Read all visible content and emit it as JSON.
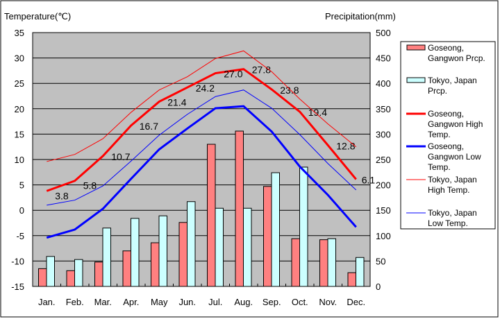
{
  "chart_data": {
    "type": "bar+line",
    "y_left_label": "Temperature(℃)",
    "y_right_label": "Precipitation(mm)",
    "ylim_left": [
      -15,
      35
    ],
    "ylim_right": [
      0,
      500
    ],
    "left_ticks": [
      "35",
      "30",
      "25",
      "20",
      "15",
      "10",
      "5",
      "0",
      "-5",
      "-10",
      "-15"
    ],
    "right_ticks": [
      "500",
      "450",
      "400",
      "350",
      "300",
      "250",
      "200",
      "150",
      "100",
      "50",
      "0"
    ],
    "categories": [
      "Jan.",
      "Feb.",
      "Mar.",
      "Apr.",
      "May",
      "Jun.",
      "Jul.",
      "Aug.",
      "Sep.",
      "Oct.",
      "Nov.",
      "Dec."
    ],
    "grid": true,
    "legend_position": "right",
    "bar_series": [
      {
        "name": "Goseong, Gangwon Prcp.",
        "color": "#ff8080",
        "values": [
          35,
          31,
          48,
          70,
          86,
          126,
          280,
          306,
          197,
          94,
          92,
          27
        ]
      },
      {
        "name": "Tokyo, Japan Prcp.",
        "color": "#ccffff",
        "values": [
          59,
          53,
          115,
          134,
          139,
          167,
          154,
          154,
          224,
          235,
          94,
          57
        ]
      }
    ],
    "line_series": [
      {
        "name": "Goseong, Gangwon High Temp.",
        "color": "#ff0000",
        "width": "thick",
        "values": [
          3.8,
          5.8,
          10.7,
          16.7,
          21.4,
          24.2,
          27.0,
          27.8,
          23.8,
          19.4,
          12.8,
          6.1
        ],
        "labels": [
          "3.8",
          "5.8",
          "10.7",
          "16.7",
          "21.4",
          "24.2",
          "27.0",
          "27.8",
          "23.8",
          "19.4",
          "12.8",
          "6.1"
        ]
      },
      {
        "name": "Goseong, Gangwon Low Temp.",
        "color": "#0000ff",
        "width": "thick",
        "values": [
          -5.4,
          -3.8,
          0.3,
          6.2,
          12.0,
          16.1,
          20.1,
          20.5,
          15.5,
          8.6,
          3.0,
          -3.3
        ]
      },
      {
        "name": "Tokyo, Japan High Temp.",
        "color": "#ff0000",
        "width": "thin",
        "values": [
          9.6,
          11.0,
          14.1,
          19.3,
          23.7,
          26.3,
          29.9,
          31.4,
          27.3,
          21.9,
          17.0,
          12.5
        ]
      },
      {
        "name": "Tokyo, Japan Low Temp.",
        "color": "#0000ff",
        "width": "thin",
        "values": [
          1.0,
          2.0,
          4.8,
          9.7,
          14.8,
          18.9,
          22.4,
          23.7,
          20.1,
          14.9,
          9.2,
          4.0
        ]
      }
    ],
    "legend": [
      {
        "lines": [
          "Goseong,",
          "Gangwon Prcp."
        ]
      },
      {
        "lines": [
          "Tokyo, Japan",
          "Prcp."
        ]
      },
      {
        "lines": [
          "Goseong,",
          "Gangwon High",
          "Temp."
        ]
      },
      {
        "lines": [
          "Goseong,",
          "Gangwon Low",
          "Temp."
        ]
      },
      {
        "lines": [
          "Tokyo, Japan",
          "High Temp."
        ]
      },
      {
        "lines": [
          "Tokyo, Japan",
          "Low Temp."
        ]
      }
    ]
  }
}
